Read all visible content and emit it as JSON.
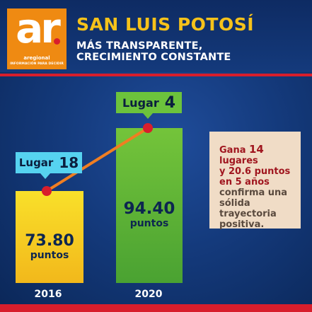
{
  "header": {
    "logo_text": "ar",
    "logo_name": "aregional",
    "logo_tagline": "INFORMACIÓN PARA DECIDIR",
    "title": "SAN LUIS POTOSÍ",
    "subtitle_line1": "MÁS TRANSPARENTE,",
    "subtitle_line2": "CRECIMIENTO CONSTANTE"
  },
  "chart_data": {
    "type": "bar",
    "categories": [
      "2016",
      "2020"
    ],
    "values": [
      73.8,
      94.4
    ],
    "value_labels": [
      "73.80",
      "94.40"
    ],
    "value_unit": "puntos",
    "rank_prefix": "Lugar",
    "ranks": [
      "18",
      "4"
    ],
    "colors": {
      "bar_2016": "#f7d51f",
      "bar_2020": "#6cbd3a",
      "trend_line": "#f07e22",
      "trend_point": "#d81e2c",
      "tag_2016": "#56d3f0",
      "tag_2020": "#6cc33c"
    }
  },
  "info": {
    "highlight_1a": "Gana ",
    "highlight_1b": "14",
    "highlight_1c": " lugares",
    "highlight_2": "y 20.6 puntos",
    "highlight_3": "en 5 años",
    "body_1": "confirma una",
    "body_2": "sólida trayectoria",
    "body_3": "positiva."
  }
}
